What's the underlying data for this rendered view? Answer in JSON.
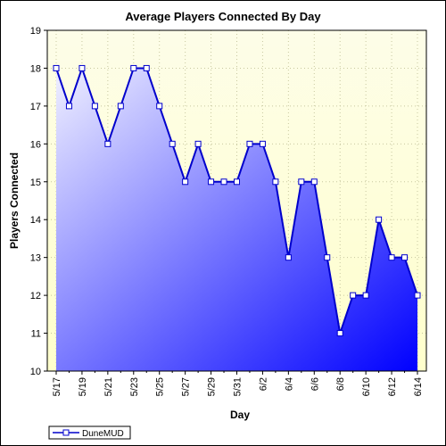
{
  "chart_data": {
    "type": "area",
    "title": "Average Players Connected By Day",
    "xlabel": "Day",
    "ylabel": "Players Connected",
    "ylim": [
      10,
      19
    ],
    "yticks": [
      10,
      11,
      12,
      13,
      14,
      15,
      16,
      17,
      18,
      19
    ],
    "x": [
      "5/17",
      "5/18",
      "5/19",
      "5/20",
      "5/21",
      "5/22",
      "5/23",
      "5/24",
      "5/25",
      "5/26",
      "5/27",
      "5/28",
      "5/29",
      "5/30",
      "5/31",
      "6/1",
      "6/2",
      "6/3",
      "6/4",
      "6/5",
      "6/6",
      "6/7",
      "6/8",
      "6/9",
      "6/10",
      "6/11",
      "6/12",
      "6/13",
      "6/14"
    ],
    "xtick_labels": [
      "5/17",
      "",
      "5/19",
      "",
      "5/21",
      "",
      "5/23",
      "",
      "5/25",
      "",
      "5/27",
      "",
      "5/29",
      "",
      "5/31",
      "",
      "6/2",
      "",
      "6/4",
      "",
      "6/6",
      "",
      "6/8",
      "",
      "6/10",
      "",
      "6/12",
      "",
      "6/14"
    ],
    "grid": true,
    "legend": "bottom-left",
    "series": [
      {
        "name": "DuneMUD",
        "values": [
          18,
          17,
          18,
          17,
          16,
          17,
          18,
          18,
          17,
          16,
          15,
          16,
          15,
          15,
          15,
          16,
          16,
          15,
          13,
          15,
          15,
          13,
          11,
          12,
          12,
          14,
          13,
          13,
          12
        ],
        "line_color": "#0000cc",
        "fill_top_color": "#f0f0ff",
        "fill_bottom_color": "#0000ff",
        "marker_color": "#ffffff"
      }
    ],
    "colors": {
      "plot_background_top": "#fdfde8",
      "plot_background_bottom": "#ffffcc",
      "grid": "#c8c8a0"
    }
  }
}
